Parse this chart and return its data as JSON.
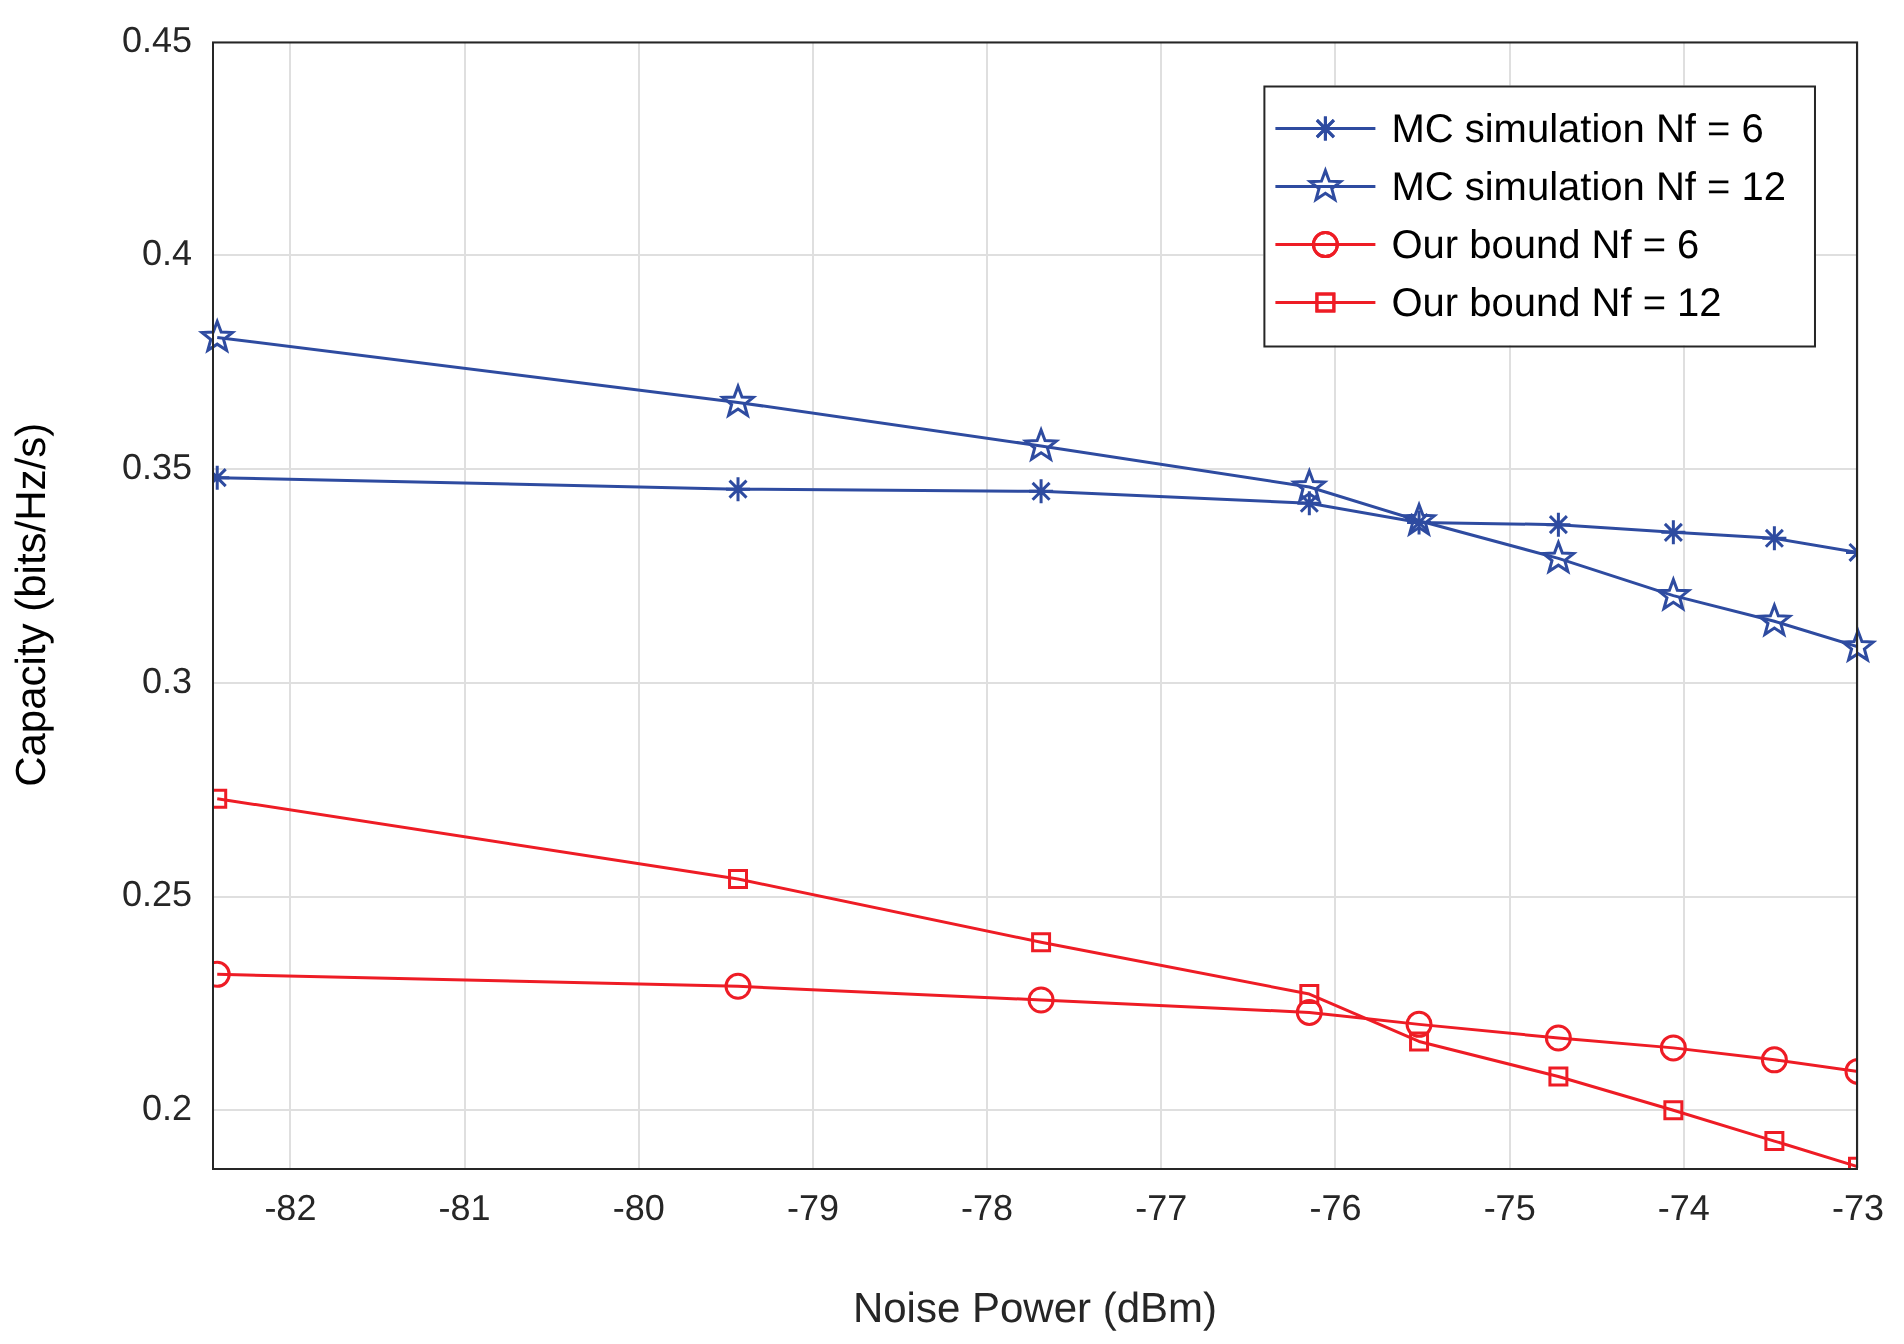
{
  "chart_data": {
    "type": "line",
    "xlabel": "Noise Power (dBm)",
    "ylabel": "Capacity (bits/Hz/s)",
    "x": [
      -82.42,
      -79.43,
      -77.69,
      -76.15,
      -75.52,
      -74.72,
      -74.06,
      -73.48,
      -73.0
    ],
    "series": [
      {
        "name": "MC simulation Nf = 6",
        "color": "#2e4ba0",
        "marker": "cross",
        "values": [
          0.348,
          0.3453,
          0.3448,
          0.342,
          0.3375,
          0.337,
          0.3352,
          0.3338,
          0.3305
        ]
      },
      {
        "name": "MC simulation Nf = 12",
        "color": "#2e4ba0",
        "marker": "star",
        "values": [
          0.3808,
          0.3656,
          0.3554,
          0.3458,
          0.3379,
          0.3291,
          0.3204,
          0.3144,
          0.3084
        ]
      },
      {
        "name": "Our bound Nf = 6",
        "color": "#ee1c25",
        "marker": "circle",
        "values": [
          0.2318,
          0.229,
          0.2258,
          0.2229,
          0.2201,
          0.2169,
          0.2146,
          0.2118,
          0.2091
        ]
      },
      {
        "name": "Our bound Nf = 12",
        "color": "#ee1c25",
        "marker": "square",
        "values": [
          0.2729,
          0.2541,
          0.2393,
          0.2272,
          0.2161,
          0.2079,
          0.2,
          0.1928,
          0.1868
        ]
      }
    ],
    "xlim": [
      -82.45,
      -73
    ],
    "ylim": [
      0.1865,
      0.45
    ],
    "xticks": [
      -82,
      -81,
      -80,
      -79,
      -78,
      -77,
      -76,
      -75,
      -74,
      -73
    ],
    "yticks": [
      0.2,
      0.25,
      0.3,
      0.35,
      0.4,
      0.45
    ],
    "grid": true,
    "legend": "top right"
  }
}
